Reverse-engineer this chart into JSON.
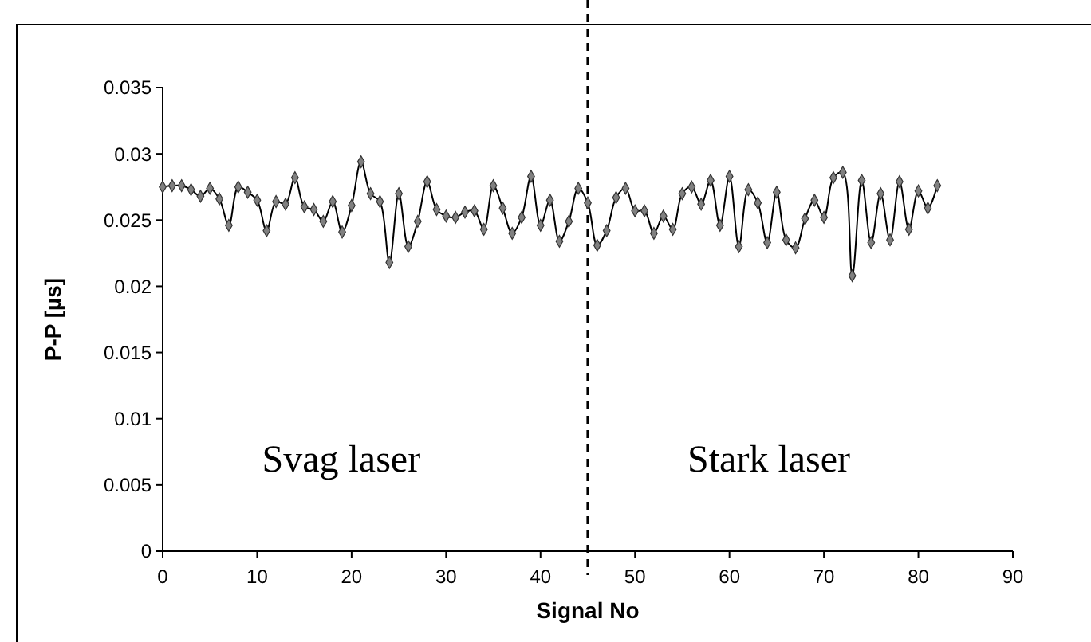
{
  "chart_data": {
    "type": "line",
    "xlabel": "Signal No",
    "ylabel": "P-P [µs]",
    "x": [
      0,
      1,
      2,
      3,
      4,
      5,
      6,
      7,
      8,
      9,
      10,
      11,
      12,
      13,
      14,
      15,
      16,
      17,
      18,
      19,
      20,
      21,
      22,
      23,
      24,
      25,
      26,
      27,
      28,
      29,
      30,
      31,
      32,
      33,
      34,
      35,
      36,
      37,
      38,
      39,
      40,
      41,
      42,
      43,
      44,
      45,
      46,
      47,
      48,
      49,
      50,
      51,
      52,
      53,
      54,
      55,
      56,
      57,
      58,
      59,
      60,
      61,
      62,
      63,
      64,
      65,
      66,
      67,
      68,
      69,
      70,
      71,
      72,
      73,
      74,
      75,
      76,
      77,
      78,
      79,
      80,
      81,
      82
    ],
    "series": [
      {
        "color": "#000000",
        "values": [
          0.0275,
          0.0276,
          0.0276,
          0.0273,
          0.0268,
          0.0274,
          0.0266,
          0.0246,
          0.0275,
          0.0271,
          0.0265,
          0.0242,
          0.0264,
          0.0262,
          0.0282,
          0.026,
          0.0258,
          0.0249,
          0.0264,
          0.0241,
          0.0261,
          0.0294,
          0.027,
          0.0264,
          0.0218,
          0.027,
          0.023,
          0.0249,
          0.0279,
          0.0258,
          0.0253,
          0.0252,
          0.0256,
          0.0257,
          0.0243,
          0.0276,
          0.0259,
          0.024,
          0.0252,
          0.0283,
          0.0246,
          0.0265,
          0.0234,
          0.0249,
          0.0274,
          0.0263,
          0.0231,
          0.0242,
          0.0267,
          0.0274,
          0.0257,
          0.0257,
          0.024,
          0.0253,
          0.0243,
          0.027,
          0.0275,
          0.0262,
          0.028,
          0.0246,
          0.0283,
          0.023,
          0.0273,
          0.0263,
          0.0233,
          0.0271,
          0.0235,
          0.0229,
          0.0251,
          0.0265,
          0.0252,
          0.0282,
          0.0286,
          0.0208,
          0.028,
          0.0233,
          0.027,
          0.0235,
          0.0279,
          0.0243,
          0.0272,
          0.0259,
          0.0276
        ]
      }
    ],
    "xlim": [
      0,
      90
    ],
    "xticks": [
      0,
      10,
      20,
      30,
      40,
      50,
      60,
      70,
      80,
      90
    ],
    "ylim": [
      0,
      0.035
    ],
    "yticks": [
      0,
      0.005,
      0.01,
      0.015,
      0.02,
      0.025,
      0.03,
      0.035
    ],
    "grid": false,
    "marker": "diamond",
    "line_style": "solid",
    "ref_lines": [
      {
        "axis": "x",
        "value": 45,
        "line_style": "dashed",
        "color": "#000000"
      }
    ],
    "annotations": [
      "Svag laser",
      "Stark laser"
    ]
  }
}
